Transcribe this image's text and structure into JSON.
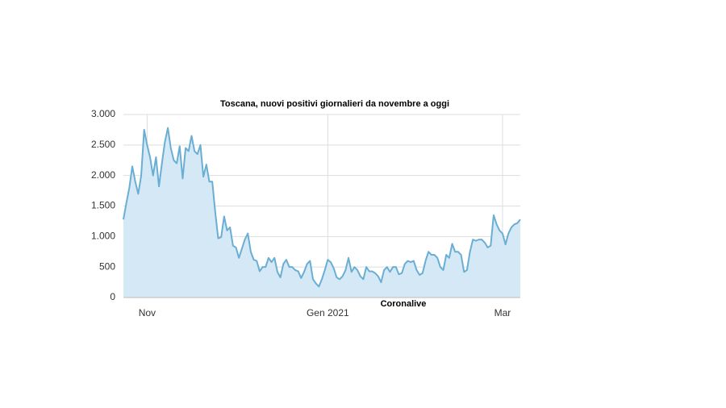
{
  "chart_data": {
    "type": "area",
    "title": "Toscana, nuovi positivi giornalieri da novembre a oggi",
    "source": "Coronalive",
    "categories": [
      null,
      null,
      null,
      null,
      null,
      null,
      null,
      null,
      "Nov",
      null,
      null,
      null,
      null,
      null,
      null,
      null,
      null,
      null,
      null,
      null,
      null,
      null,
      null,
      null,
      null,
      null,
      null,
      null,
      null,
      null,
      null,
      null,
      null,
      null,
      null,
      null,
      null,
      null,
      null,
      null,
      null,
      null,
      null,
      null,
      null,
      null,
      null,
      null,
      null,
      null,
      null,
      null,
      null,
      null,
      null,
      null,
      null,
      null,
      null,
      null,
      null,
      null,
      null,
      null,
      null,
      null,
      null,
      null,
      null,
      "Gen 2021",
      null,
      null,
      null,
      null,
      null,
      null,
      null,
      null,
      null,
      null,
      null,
      null,
      null,
      null,
      null,
      null,
      null,
      null,
      null,
      null,
      null,
      null,
      null,
      null,
      null,
      null,
      null,
      null,
      null,
      null,
      null,
      null,
      null,
      null,
      null,
      null,
      null,
      null,
      null,
      null,
      null,
      null,
      null,
      null,
      null,
      null,
      null,
      null,
      null,
      null,
      null,
      null,
      null,
      null,
      null,
      null,
      null,
      null,
      "Mar",
      null,
      null,
      null,
      null,
      null,
      null
    ],
    "values": [
      1280,
      1550,
      1800,
      2150,
      1900,
      1700,
      2000,
      2750,
      2500,
      2300,
      2000,
      2300,
      1820,
      2200,
      2550,
      2780,
      2450,
      2250,
      2200,
      2480,
      1950,
      2450,
      2400,
      2650,
      2400,
      2350,
      2500,
      1980,
      2180,
      1900,
      1900,
      1400,
      970,
      990,
      1330,
      1100,
      1150,
      850,
      820,
      650,
      800,
      950,
      1050,
      750,
      620,
      600,
      430,
      500,
      500,
      650,
      580,
      650,
      420,
      330,
      550,
      620,
      500,
      500,
      450,
      430,
      320,
      420,
      550,
      600,
      300,
      230,
      180,
      300,
      450,
      620,
      580,
      480,
      330,
      300,
      350,
      450,
      650,
      420,
      500,
      450,
      350,
      300,
      500,
      430,
      430,
      400,
      350,
      250,
      450,
      500,
      420,
      500,
      500,
      380,
      400,
      550,
      600,
      580,
      600,
      450,
      370,
      400,
      600,
      750,
      700,
      700,
      650,
      500,
      450,
      700,
      650,
      880,
      750,
      750,
      700,
      420,
      450,
      750,
      950,
      930,
      950,
      950,
      900,
      820,
      850,
      1350,
      1200,
      1100,
      1050,
      870,
      1050,
      1150,
      1200,
      1220,
      1280
    ],
    "color": "#6aaed3",
    "fill": "#d4e9f5",
    "ylim": [
      0,
      3000
    ],
    "yticks": [
      0,
      500,
      {
        "value": 1000,
        "label": "1.000"
      },
      {
        "value": 1500,
        "label": "1.500"
      },
      {
        "value": 2000,
        "label": "2.000"
      },
      {
        "value": 2500,
        "label": "2.500"
      },
      {
        "value": 3000,
        "label": "3.000"
      }
    ],
    "grid": true
  }
}
